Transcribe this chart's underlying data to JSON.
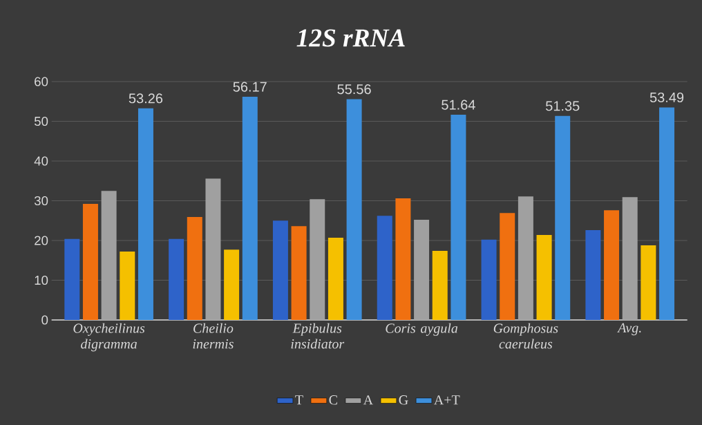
{
  "chart_data": {
    "type": "bar",
    "title": "12S rRNA",
    "categories": [
      "Oxycheilinus digramma",
      "Cheilio inermis",
      "Epibulus insidiator",
      "Coris aygula",
      "Gomphosus caeruleus",
      "Avg."
    ],
    "series": [
      {
        "name": "T",
        "color": "#2e63c9",
        "values": [
          20.4,
          20.4,
          25.0,
          26.2,
          20.2,
          22.6
        ]
      },
      {
        "name": "C",
        "color": "#f07010",
        "values": [
          29.2,
          25.9,
          23.6,
          30.6,
          26.9,
          27.6
        ]
      },
      {
        "name": "A",
        "color": "#a0a0a0",
        "values": [
          32.5,
          35.6,
          30.4,
          25.2,
          31.1,
          30.9
        ]
      },
      {
        "name": "G",
        "color": "#f5c000",
        "values": [
          17.2,
          17.7,
          20.7,
          17.4,
          21.4,
          18.8
        ]
      },
      {
        "name": "A+T",
        "color": "#3d8fdc",
        "values": [
          53.26,
          56.17,
          55.56,
          51.64,
          51.35,
          53.49
        ],
        "value_labels": [
          "53.26",
          "56.17",
          "55.56",
          "51.64",
          "51.35",
          "53.49"
        ]
      }
    ],
    "ylim": [
      0,
      60
    ],
    "yticks": [
      0,
      10,
      20,
      30,
      40,
      50,
      60
    ],
    "grid": "y",
    "legend": "bottom"
  }
}
